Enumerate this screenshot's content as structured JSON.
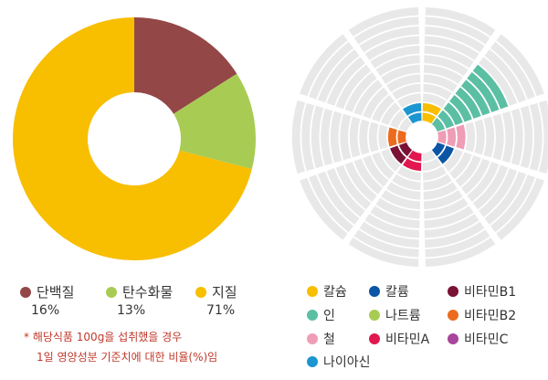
{
  "chart_data": [
    {
      "type": "pie",
      "categories": [
        "단백질",
        "탄수화물",
        "지질"
      ],
      "values": [
        16,
        13,
        71
      ],
      "percent_labels": [
        "16%",
        "13%",
        "71%"
      ],
      "colors": [
        "#944747",
        "#a8cc53",
        "#f8be00"
      ]
    },
    {
      "type": "radial-bar",
      "categories": [
        "칼슘",
        "인",
        "철",
        "칼륨",
        "나트륨",
        "비타민A",
        "비타민B1",
        "비타민B2",
        "비타민C",
        "나이아신"
      ],
      "values": [
        2,
        8,
        3,
        2,
        0,
        2,
        2,
        2,
        0,
        2
      ],
      "max": 12,
      "colors": [
        "#f8be00",
        "#5bbfa4",
        "#ef9db7",
        "#0b55a6",
        "#a8cc53",
        "#e2174f",
        "#7a1236",
        "#ec6b1e",
        "#a8459c",
        "#1b96d1"
      ]
    }
  ],
  "legend_left": [
    {
      "label": "단백질",
      "pct": "16%",
      "color": "#944747"
    },
    {
      "label": "탄수화물",
      "pct": "13%",
      "color": "#a8cc53"
    },
    {
      "label": "지질",
      "pct": "71%",
      "color": "#f8be00"
    }
  ],
  "note": {
    "line1": "* 해당식품 100g을 섭취했을 경우",
    "line2": "1일 영양성분 기준치에 대한 비율(%)임"
  },
  "legend_right": [
    {
      "label": "칼슘",
      "color": "#f8be00"
    },
    {
      "label": "칼륨",
      "color": "#0b55a6"
    },
    {
      "label": "비타민B1",
      "color": "#7a1236"
    },
    {
      "label": "인",
      "color": "#5bbfa4"
    },
    {
      "label": "나트륨",
      "color": "#a8cc53"
    },
    {
      "label": "비타민B2",
      "color": "#ec6b1e"
    },
    {
      "label": "철",
      "color": "#ef9db7"
    },
    {
      "label": "비타민A",
      "color": "#e2174f"
    },
    {
      "label": "비타민C",
      "color": "#a8459c"
    },
    {
      "label": "나이아신",
      "color": "#1b96d1"
    }
  ]
}
